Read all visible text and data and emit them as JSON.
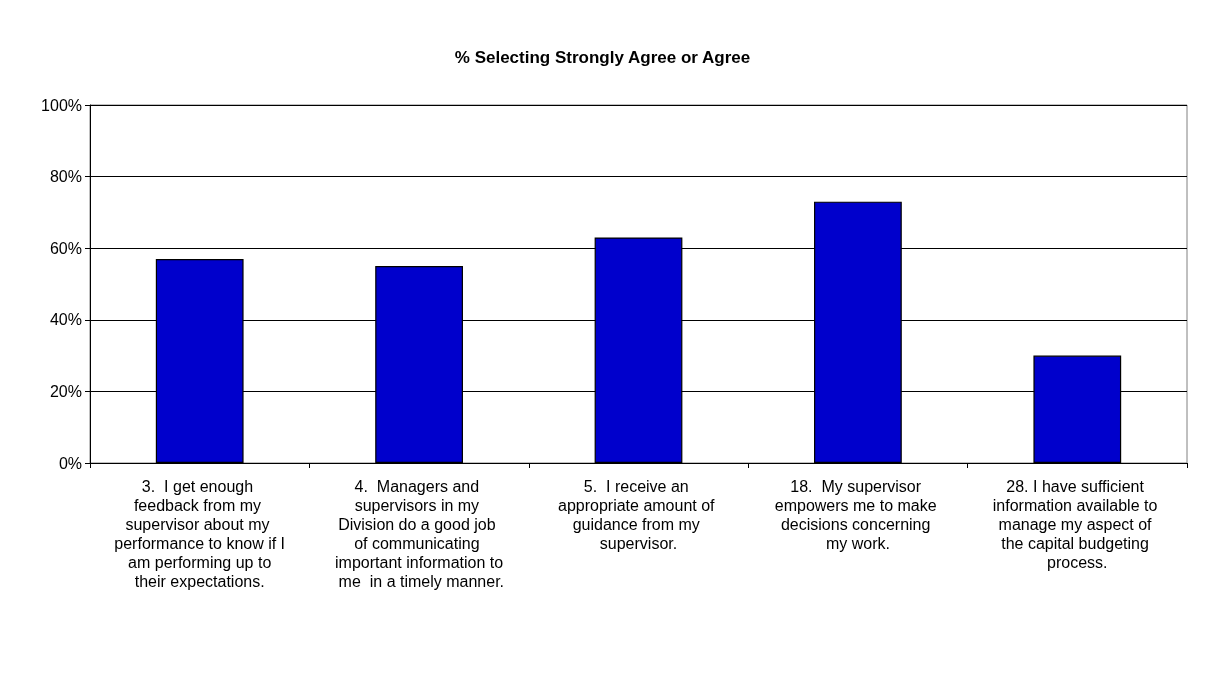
{
  "chart_data": {
    "type": "bar",
    "title": "% Selecting Strongly Agree or Agree",
    "categories": [
      "3.  I get enough feedback from my supervisor about my performance to know if I am performing up to their expectations.",
      "4.  Managers and supervisors in my Division do a good job of communicating important information to me  in a timely manner.",
      "5.  I receive an appropriate amount of guidance from my supervisor.",
      "18.  My supervisor empowers me to make decisions concerning my work.",
      "28. I have sufficient information available to manage my aspect of the capital budgeting process."
    ],
    "values": [
      57,
      55,
      63,
      73,
      30
    ],
    "color": "#0000cc",
    "ylim": [
      0,
      100
    ],
    "yticks": [
      {
        "value": 0,
        "label": "0%"
      },
      {
        "value": 20,
        "label": "20%"
      },
      {
        "value": 40,
        "label": "40%"
      },
      {
        "value": 60,
        "label": "60%"
      },
      {
        "value": 80,
        "label": "80%"
      },
      {
        "value": 100,
        "label": "100%"
      }
    ],
    "grid": "y"
  }
}
